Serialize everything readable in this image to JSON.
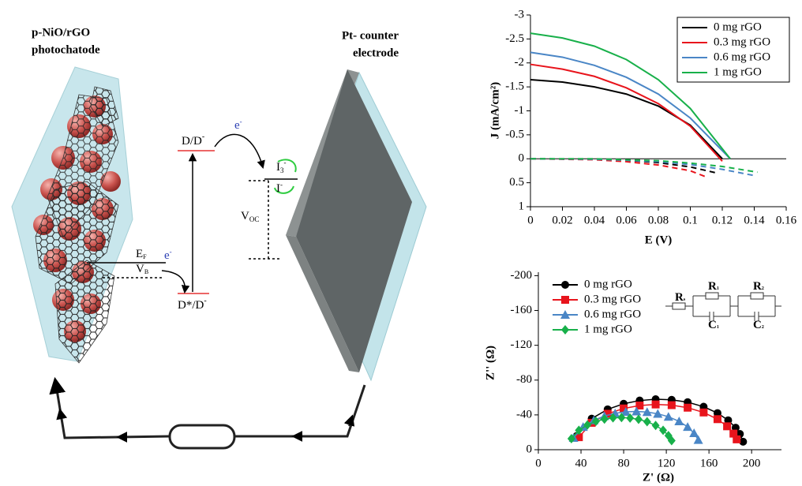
{
  "diagram": {
    "photocathode_label": [
      "p-NiO/rGO",
      "photochatode"
    ],
    "counter_label": [
      "Pt- counter",
      "electrode"
    ],
    "dye_ground": {
      "base": "D/D",
      "sup": "-"
    },
    "dye_excited": {
      "base": "D*/D",
      "sup": "-"
    },
    "electron_top": {
      "base": "e",
      "sup": "-"
    },
    "electron_bottom": {
      "base": "e",
      "sup": "-"
    },
    "triiodide": {
      "base": "I",
      "sub": "3",
      "sup": "-"
    },
    "iodide": {
      "base": "I",
      "sup": "-"
    },
    "voc": {
      "base": "V",
      "sub": "OC"
    },
    "fermi": {
      "base": "E",
      "sub": "F"
    },
    "valence": {
      "base": "V",
      "sub": "B"
    },
    "circuit": [
      {
        "base": "R",
        "sub": "s"
      },
      {
        "base": "R",
        "sub": "1"
      },
      {
        "base": "C",
        "sub": "1"
      },
      {
        "base": "R",
        "sub": "2"
      },
      {
        "base": "C",
        "sub": "2"
      }
    ]
  },
  "chart_data": [
    {
      "type": "line",
      "xlabel": "E (V)",
      "ylabel": "J (mA/cm²)",
      "xlim": [
        0,
        0.16
      ],
      "xticks": [
        0,
        0.02,
        0.04,
        0.06,
        0.08,
        0.1,
        0.12,
        0.14,
        0.16
      ],
      "ylim": [
        1,
        -3
      ],
      "yticks": [
        -3,
        -2.5,
        -2,
        -1.5,
        -1,
        -0.5,
        0,
        0.5,
        1
      ],
      "hline": 0,
      "legend": "upper right",
      "series": [
        {
          "name": "0 mg rGO",
          "color": "#000000",
          "x": [
            0,
            0.02,
            0.04,
            0.06,
            0.08,
            0.1,
            0.12
          ],
          "values": [
            -1.65,
            -1.6,
            -1.5,
            -1.35,
            -1.1,
            -0.7,
            0
          ],
          "dark_x": [
            0,
            0.04,
            0.06,
            0.08,
            0.1,
            0.117
          ],
          "dark_values": [
            0,
            0.01,
            0.03,
            0.08,
            0.17,
            0.3
          ]
        },
        {
          "name": "0.3 mg rGO",
          "color": "#e8141c",
          "x": [
            0,
            0.02,
            0.04,
            0.06,
            0.08,
            0.1,
            0.12
          ],
          "values": [
            -1.97,
            -1.87,
            -1.72,
            -1.48,
            -1.15,
            -0.68,
            0.05
          ],
          "dark_x": [
            0,
            0.04,
            0.06,
            0.08,
            0.1,
            0.11
          ],
          "dark_values": [
            0,
            0.02,
            0.06,
            0.13,
            0.25,
            0.38
          ]
        },
        {
          "name": "0.6 mg rGO",
          "color": "#4a86c6",
          "x": [
            0,
            0.02,
            0.04,
            0.06,
            0.08,
            0.1,
            0.125
          ],
          "values": [
            -2.22,
            -2.12,
            -1.95,
            -1.7,
            -1.35,
            -0.85,
            0
          ],
          "dark_x": [
            0,
            0.04,
            0.06,
            0.08,
            0.1,
            0.12,
            0.14
          ],
          "dark_values": [
            0,
            0.01,
            0.03,
            0.06,
            0.12,
            0.22,
            0.35
          ]
        },
        {
          "name": "1 mg rGO",
          "color": "#18b04a",
          "x": [
            0,
            0.02,
            0.04,
            0.06,
            0.08,
            0.1,
            0.125
          ],
          "values": [
            -2.62,
            -2.52,
            -2.35,
            -2.07,
            -1.65,
            -1.05,
            0
          ],
          "dark_x": [
            0,
            0.04,
            0.06,
            0.08,
            0.1,
            0.12,
            0.142
          ],
          "dark_values": [
            0,
            0,
            0.02,
            0.04,
            0.09,
            0.16,
            0.28
          ]
        }
      ]
    },
    {
      "type": "scatter",
      "xlabel": "Z' (Ω)",
      "ylabel": "Z'' (Ω)",
      "xlim": [
        0,
        228
      ],
      "xticks": [
        0,
        40,
        80,
        120,
        160,
        200
      ],
      "ylim": [
        0,
        -204
      ],
      "yticks": [
        0,
        -40,
        -80,
        -120,
        -160,
        -200
      ],
      "legend": "upper left",
      "series": [
        {
          "name": "0 mg rGO",
          "color": "#000000",
          "marker": "circle",
          "x": [
            36,
            50,
            65,
            80,
            95,
            110,
            125,
            140,
            155,
            168,
            178,
            185,
            189,
            192
          ],
          "values": [
            -15.8,
            -35.7,
            -46.4,
            -52.8,
            -56.5,
            -58,
            -57.3,
            -54.6,
            -49.4,
            -42.1,
            -33.8,
            -25.3,
            -18.1,
            -9.2
          ]
        },
        {
          "name": "0.3 mg rGO",
          "color": "#e8141c",
          "marker": "square",
          "x": [
            38,
            50,
            65,
            80,
            95,
            110,
            125,
            140,
            155,
            168,
            177,
            183,
            186
          ],
          "values": [
            -14.4,
            -30.9,
            -41.3,
            -47.4,
            -50.8,
            -52,
            -51.2,
            -48.3,
            -42.8,
            -35.1,
            -26.9,
            -18.5,
            -11.9
          ]
        },
        {
          "name": "0.6 mg rGO",
          "color": "#4a86c6",
          "marker": "triangle",
          "x": [
            33,
            42,
            52,
            62,
            72,
            82,
            92,
            102,
            112,
            122,
            132,
            140,
            146,
            150
          ],
          "values": [
            -13.6,
            -26.2,
            -33.8,
            -38.7,
            -41.8,
            -43.5,
            -44,
            -43.3,
            -41.3,
            -37.9,
            -32.6,
            -26.2,
            -19,
            -11.2
          ]
        },
        {
          "name": "1 mg rGO",
          "color": "#18b04a",
          "marker": "diamond",
          "x": [
            31,
            38,
            46,
            54,
            62,
            70,
            78,
            86,
            94,
            102,
            110,
            117,
            122,
            125
          ],
          "values": [
            -12.7,
            -22.3,
            -28.5,
            -32.6,
            -35.1,
            -36.6,
            -37,
            -36.4,
            -34.9,
            -32.2,
            -27.9,
            -22.3,
            -16.2,
            -10.4
          ]
        }
      ]
    }
  ]
}
